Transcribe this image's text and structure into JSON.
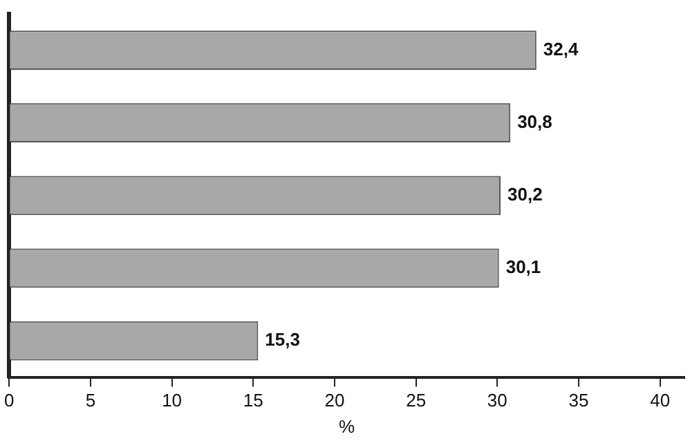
{
  "chart_data": {
    "type": "bar",
    "orientation": "horizontal",
    "categories": [
      null,
      null,
      null,
      null,
      null
    ],
    "values": [
      32.4,
      30.8,
      30.2,
      30.1,
      15.3
    ],
    "value_labels": [
      "32,4",
      "30,8",
      "30,2",
      "30,1",
      "15,3"
    ],
    "color": "#a8a8a8",
    "xlim": [
      0,
      41.5
    ],
    "xticks": [
      0,
      5,
      10,
      15,
      20,
      25,
      30,
      35,
      40
    ],
    "xlabel": "%",
    "grid": false,
    "legend": false,
    "tick_labels": "x"
  }
}
